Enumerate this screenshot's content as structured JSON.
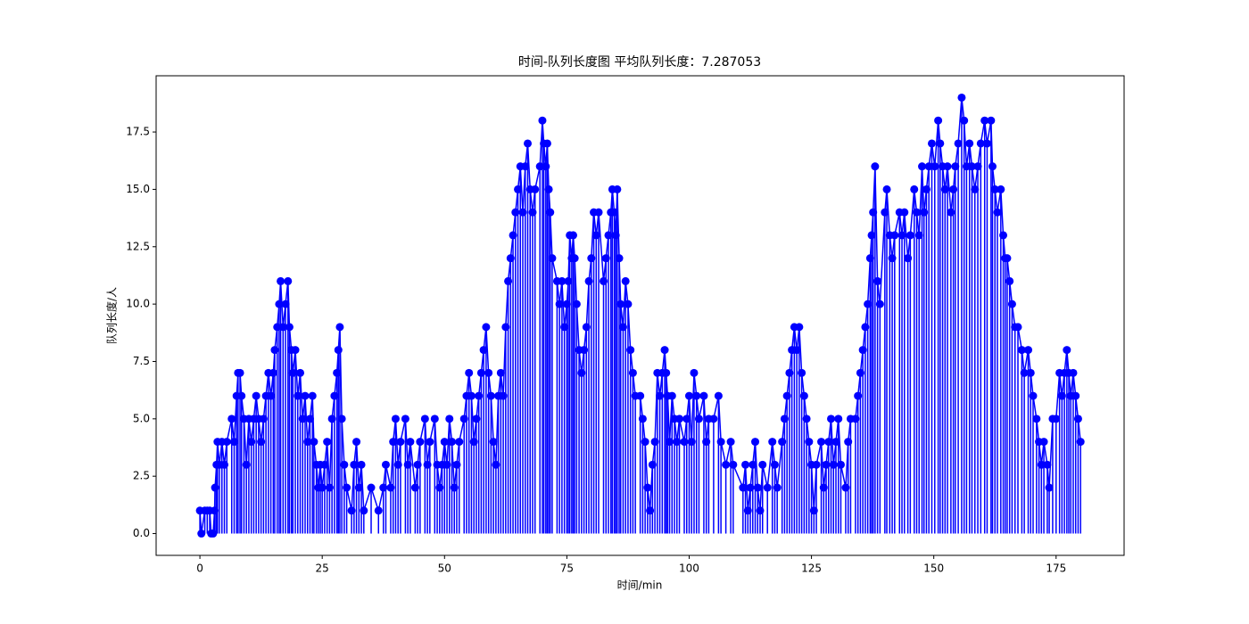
{
  "chart_data": {
    "type": "stem",
    "title": "时间-队列长度图 平均队列长度：7.287053",
    "x_label": "时间/min",
    "y_label": "队列长度/人",
    "color": "#0000ff",
    "xlim": [
      -8.95,
      188.9
    ],
    "ylim": [
      -0.95,
      19.95
    ],
    "xticks": [
      0,
      25,
      50,
      75,
      100,
      125,
      150,
      175
    ],
    "yticks": [
      {
        "value": 0,
        "label": "0.0"
      },
      {
        "value": 2.5,
        "label": "2.5"
      },
      {
        "value": 5,
        "label": "5.0"
      },
      {
        "value": 7.5,
        "label": "7.5"
      },
      {
        "value": 10,
        "label": "10.0"
      },
      {
        "value": 12.5,
        "label": "12.5"
      },
      {
        "value": 15,
        "label": "15.0"
      },
      {
        "value": 17.5,
        "label": "17.5"
      }
    ],
    "x": [
      0,
      0.3,
      1,
      1.5,
      2,
      2.3,
      2.7,
      3,
      3.1,
      3.4,
      3.6,
      4,
      4.5,
      5,
      5.5,
      6.5,
      7,
      7.5,
      7.8,
      8.2,
      8.5,
      9,
      9.5,
      10,
      10.5,
      11,
      11.5,
      12,
      12.5,
      13,
      13.5,
      14,
      14.5,
      15,
      15.3,
      15.8,
      16.2,
      16.5,
      17,
      17.5,
      18,
      18.3,
      18.7,
      19,
      19.5,
      20,
      20.5,
      21,
      21.5,
      22,
      22.5,
      23,
      23.3,
      23.8,
      24.2,
      24.6,
      25,
      25.5,
      26,
      26.5,
      27,
      27.5,
      28,
      28.3,
      28.6,
      29,
      29.5,
      30,
      31,
      31.5,
      32,
      32.5,
      33,
      33.5,
      35,
      36.5,
      37.5,
      38,
      39,
      39.5,
      40,
      40.5,
      41,
      42,
      42.5,
      43,
      44,
      44.5,
      45,
      46,
      46.5,
      47,
      48,
      48.5,
      49,
      49.5,
      50,
      50.5,
      51,
      51.5,
      52,
      52.5,
      53,
      54,
      54.5,
      55,
      55.5,
      56,
      56.5,
      57,
      57.5,
      58,
      58.5,
      59,
      59.5,
      60,
      60.5,
      61,
      61.5,
      62,
      62.5,
      63,
      63.5,
      64,
      64.5,
      65,
      65.5,
      66,
      66.5,
      67,
      67.5,
      68,
      68.5,
      69.5,
      70,
      70.3,
      70.7,
      71,
      71.3,
      71.6,
      72,
      73,
      73.5,
      74,
      74.5,
      75,
      75.3,
      75.6,
      76,
      76.3,
      76.6,
      77,
      77.5,
      78,
      78.5,
      79,
      79.5,
      80,
      80.5,
      81,
      81.5,
      82.5,
      83,
      83.5,
      84,
      84.3,
      84.7,
      85,
      85.3,
      85.7,
      86,
      86.5,
      87,
      87.5,
      88,
      88.5,
      89,
      90,
      90.5,
      91,
      91.5,
      92,
      92.5,
      93,
      93.5,
      94,
      94.5,
      95,
      95.3,
      95.6,
      96,
      96.5,
      97,
      97.5,
      98,
      99,
      99.5,
      100,
      100.5,
      101,
      101.5,
      102,
      103,
      103.5,
      104,
      105,
      106,
      106.5,
      107.5,
      108.5,
      109,
      111,
      111.5,
      112,
      112.5,
      113,
      113.5,
      114,
      114.5,
      115,
      116,
      117,
      117.5,
      118,
      119,
      119.5,
      120,
      120.5,
      121,
      121.5,
      122,
      122.5,
      123,
      123.5,
      124,
      124.5,
      125,
      125.5,
      126,
      127,
      127.5,
      128,
      128.5,
      129,
      129.5,
      130,
      130.5,
      131,
      132,
      132.5,
      133,
      134,
      134.5,
      135,
      135.5,
      136,
      136.5,
      137,
      137.3,
      137.6,
      138,
      138.5,
      139,
      140,
      140.4,
      141,
      141.5,
      142,
      143,
      143.5,
      144,
      144.7,
      145.2,
      146,
      146.5,
      147,
      147.6,
      148,
      148.5,
      149,
      149.6,
      150.2,
      150.9,
      151.3,
      151.8,
      152.3,
      152.8,
      153.5,
      154,
      154.4,
      155,
      155.7,
      156.2,
      156.7,
      157.3,
      157.8,
      158.4,
      159,
      159.6,
      160.4,
      160.9,
      161.7,
      162,
      162.5,
      163,
      163.7,
      164.2,
      164.6,
      165,
      165.5,
      166,
      166.6,
      167.2,
      168,
      168.5,
      169.3,
      169.8,
      170.3,
      171,
      171.5,
      172,
      172.5,
      173.2,
      173.6,
      174.3,
      175,
      175.7,
      176.2,
      176.7,
      177.2,
      177.6,
      178,
      178.5,
      179,
      179.5,
      180
    ],
    "values": [
      1,
      0,
      1,
      1,
      1,
      0,
      0,
      1,
      2,
      3,
      4,
      3,
      4,
      3,
      4,
      5,
      4,
      6,
      7,
      7,
      6,
      5,
      3,
      5,
      4,
      5,
      6,
      5,
      4,
      5,
      6,
      7,
      6,
      7,
      8,
      9,
      10,
      11,
      9,
      10,
      11,
      9,
      8,
      7,
      8,
      6,
      7,
      5,
      6,
      4,
      5,
      6,
      4,
      3,
      2,
      3,
      2,
      3,
      4,
      2,
      5,
      6,
      7,
      8,
      9,
      5,
      3,
      2,
      1,
      3,
      4,
      2,
      3,
      1,
      2,
      1,
      2,
      3,
      2,
      4,
      5,
      3,
      4,
      5,
      3,
      4,
      2,
      3,
      4,
      5,
      3,
      4,
      5,
      3,
      2,
      3,
      4,
      3,
      5,
      4,
      2,
      3,
      4,
      5,
      6,
      7,
      6,
      4,
      5,
      6,
      7,
      8,
      9,
      7,
      6,
      4,
      3,
      6,
      7,
      6,
      9,
      11,
      12,
      13,
      14,
      15,
      16,
      14,
      16,
      17,
      15,
      14,
      15,
      16,
      18,
      17,
      16,
      17,
      15,
      14,
      12,
      11,
      10,
      11,
      9,
      10,
      11,
      13,
      12,
      13,
      12,
      10,
      8,
      7,
      8,
      9,
      11,
      12,
      14,
      13,
      14,
      11,
      12,
      13,
      14,
      15,
      14,
      13,
      15,
      12,
      10,
      9,
      11,
      10,
      8,
      7,
      6,
      6,
      5,
      4,
      2,
      1,
      3,
      4,
      7,
      6,
      7,
      8,
      7,
      6,
      4,
      6,
      5,
      4,
      5,
      4,
      5,
      6,
      4,
      7,
      6,
      5,
      6,
      4,
      5,
      5,
      6,
      4,
      3,
      4,
      3,
      2,
      3,
      1,
      2,
      3,
      4,
      2,
      1,
      3,
      2,
      4,
      3,
      2,
      4,
      5,
      6,
      7,
      8,
      9,
      8,
      9,
      7,
      6,
      5,
      4,
      3,
      1,
      3,
      4,
      2,
      3,
      4,
      5,
      3,
      4,
      5,
      3,
      2,
      4,
      5,
      5,
      6,
      7,
      8,
      9,
      10,
      12,
      13,
      14,
      16,
      11,
      10,
      14,
      15,
      13,
      12,
      13,
      14,
      13,
      14,
      12,
      13,
      15,
      14,
      13,
      16,
      14,
      15,
      16,
      17,
      16,
      18,
      17,
      16,
      15,
      16,
      14,
      15,
      16,
      17,
      19,
      18,
      16,
      17,
      16,
      15,
      16,
      17,
      18,
      17,
      18,
      16,
      15,
      14,
      15,
      13,
      12,
      12,
      11,
      10,
      9,
      9,
      8,
      7,
      8,
      7,
      6,
      5,
      4,
      3,
      4,
      3,
      2,
      5,
      5,
      7,
      6,
      7,
      8,
      7,
      6,
      7,
      6,
      5,
      4
    ]
  }
}
